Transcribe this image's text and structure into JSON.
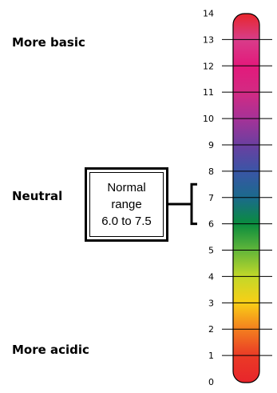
{
  "labels": {
    "more_basic": "More basic",
    "neutral": "Neutral",
    "more_acidic": "More acidic"
  },
  "range_box": {
    "line1": "Normal",
    "line2": "range",
    "line3": "6.0 to 7.5"
  },
  "scale": {
    "min": 0,
    "max": 14,
    "ticks": [
      "0",
      "1",
      "2",
      "3",
      "4",
      "5",
      "6",
      "7",
      "8",
      "9",
      "10",
      "11",
      "12",
      "13",
      "14"
    ],
    "normal_range": [
      6.0,
      7.5
    ],
    "colors": {
      "0": "#e8262b",
      "1": "#ea3a26",
      "2": "#f37f1f",
      "3": "#f9cf16",
      "4": "#c3d829",
      "5": "#61b63a",
      "6": "#0a8c3e",
      "7": "#1b6a8c",
      "8": "#3a55a6",
      "9": "#6b3fa0",
      "10": "#a63297",
      "11": "#d32a83",
      "12": "#e3197b",
      "13": "#d83d8a",
      "14": "#e8262b"
    }
  }
}
